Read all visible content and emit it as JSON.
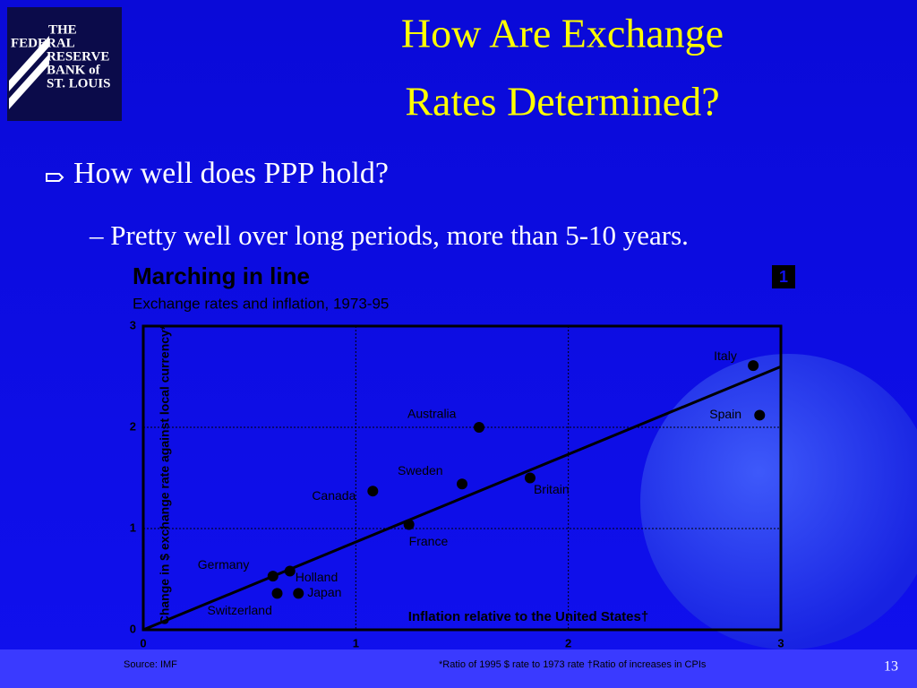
{
  "logo": [
    "THE",
    "FEDERAL",
    "RESERVE",
    "BANK of",
    "ST. LOUIS"
  ],
  "title": [
    "How Are Exchange",
    "Rates Determined?"
  ],
  "bullet": "How well does PPP hold?",
  "sub_bullet": "– Pretty well over long periods, more than 5-10 years.",
  "page_number": "13",
  "chart_data": {
    "type": "scatter",
    "title": "Marching in line",
    "subtitle": "Exchange rates and inflation, 1973-95",
    "badge": "1",
    "y_label": "Change in $ exchange rate against local currency*",
    "x_label": "Inflation relative to the United States†",
    "source": "Source: IMF",
    "footnote": "*Ratio of 1995 $ rate to 1973 rate  †Ratio of increases in CPIs",
    "labels": [
      "Italy",
      "Spain",
      "Australia",
      "Sweden",
      "Britain",
      "Canada",
      "France",
      "Germany",
      "Holland",
      "Japan",
      "Switzerland"
    ],
    "x": [
      2.87,
      2.9,
      1.58,
      1.5,
      1.82,
      1.08,
      1.25,
      0.61,
      0.69,
      0.73,
      0.63
    ],
    "values": [
      2.61,
      2.12,
      2.0,
      1.44,
      1.5,
      1.37,
      1.04,
      0.53,
      0.58,
      0.36,
      0.36
    ],
    "color": "#000000",
    "fit_line": {
      "x": [
        0,
        3
      ],
      "values": [
        0,
        2.6
      ]
    },
    "xlim": [
      0,
      3
    ],
    "ylim": [
      0,
      3
    ],
    "xticks": [
      0,
      1,
      2,
      3
    ],
    "yticks": [
      0,
      1,
      2,
      3
    ],
    "grid": true
  }
}
